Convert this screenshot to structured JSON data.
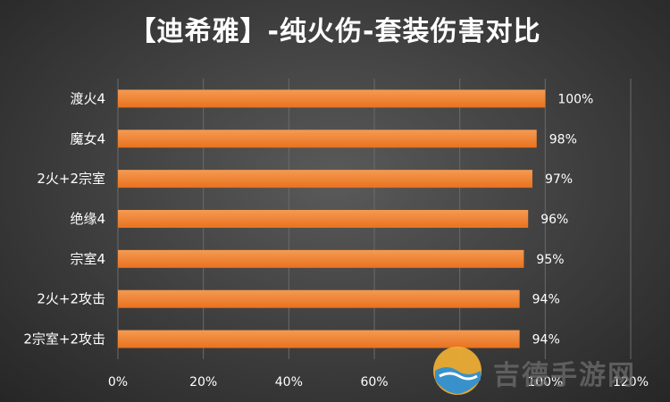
{
  "title": "【迪希雅】-纯火伤-套装伤害对比",
  "watermark": {
    "text": "吉德手游网"
  },
  "colors": {
    "bar": "#f07d2e",
    "background": "#3d3d3d",
    "text": "#ffffff",
    "grid": "#6a6a6a"
  },
  "chart_data": {
    "type": "bar",
    "orientation": "horizontal",
    "categories": [
      "渡火4",
      "魔女4",
      "2火+2宗室",
      "绝缘4",
      "宗室4",
      "2火+2攻击",
      "2宗室+2攻击"
    ],
    "values": [
      100,
      98,
      97,
      96,
      95,
      94,
      94
    ],
    "value_labels": [
      "100%",
      "98%",
      "97%",
      "96%",
      "95%",
      "94%",
      "94%"
    ],
    "xlim": [
      0,
      120
    ],
    "xticks": [
      0,
      20,
      40,
      60,
      80,
      100,
      120
    ],
    "xtick_labels": [
      "0%",
      "20%",
      "40%",
      "60%",
      "80%",
      "100%",
      "120%"
    ],
    "grid": true,
    "title": "【迪希雅】-纯火伤-套装伤害对比"
  }
}
